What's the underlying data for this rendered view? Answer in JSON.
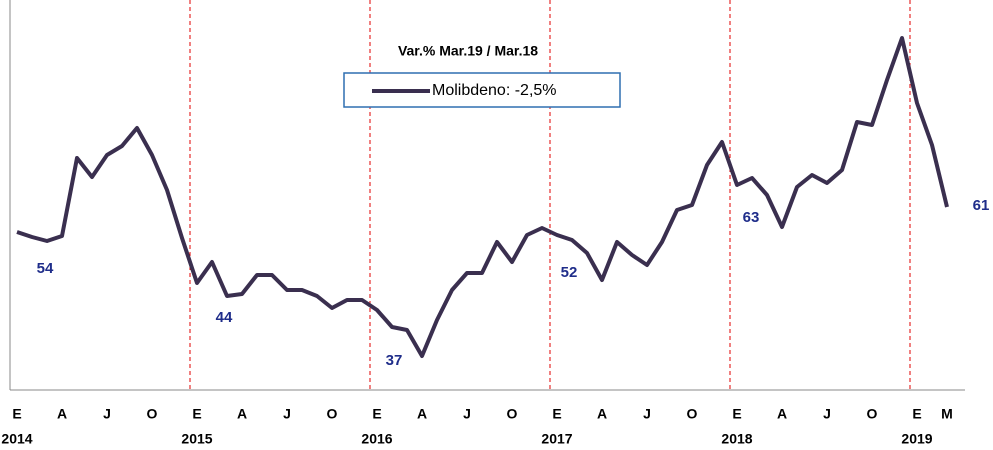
{
  "chart_data": {
    "type": "line",
    "legend_title": "Var.% Mar.19 / Mar.18",
    "categories": [
      "E",
      null,
      null,
      "A",
      null,
      null,
      "J",
      null,
      null,
      "O",
      null,
      null,
      "E",
      null,
      null,
      "A",
      null,
      null,
      "J",
      null,
      null,
      "O",
      null,
      null,
      "E",
      null,
      null,
      "A",
      null,
      null,
      "J",
      null,
      null,
      "O",
      null,
      null,
      "E",
      null,
      null,
      "A",
      null,
      null,
      "J",
      null,
      null,
      "O",
      null,
      null,
      "E",
      null,
      null,
      "A",
      null,
      null,
      "J",
      null,
      null,
      "O",
      null,
      null,
      "E",
      null,
      "M"
    ],
    "years": [
      "2014",
      null,
      null,
      null,
      null,
      null,
      null,
      null,
      null,
      null,
      null,
      null,
      "2015",
      null,
      null,
      null,
      null,
      null,
      null,
      null,
      null,
      null,
      null,
      null,
      "2016",
      null,
      null,
      null,
      null,
      null,
      null,
      null,
      null,
      null,
      null,
      null,
      "2017",
      null,
      null,
      null,
      null,
      null,
      null,
      null,
      null,
      null,
      null,
      null,
      "2018",
      null,
      null,
      null,
      null,
      null,
      null,
      null,
      null,
      null,
      null,
      null,
      "2019",
      null,
      null
    ],
    "series": [
      {
        "name": "Molibdeno: -2,5%",
        "color": "#3a2f4f",
        "values": [
          56,
          55,
          54.2,
          55.2,
          70.8,
          67,
          71.4,
          73.2,
          76.8,
          71.4,
          64.4,
          54.8,
          45.8,
          50,
          43.2,
          43.6,
          47.4,
          47.4,
          44.4,
          44.4,
          43.2,
          40.8,
          42.4,
          42.4,
          40.4,
          37,
          36.4,
          31.2,
          38.4,
          44.4,
          47.8,
          47.8,
          54,
          50,
          55.4,
          56.8,
          55.4,
          54.4,
          51.8,
          46.4,
          54,
          51.4,
          49.4,
          54,
          60.4,
          61.4,
          69.4,
          74,
          65.4,
          66.8,
          63.4,
          57,
          65,
          67.4,
          65.8,
          68.4,
          78,
          77.4,
          86.4,
          94.8,
          81.8,
          73.4,
          61
        ]
      }
    ],
    "annotations": [
      "54",
      "44",
      "37",
      "52",
      "63",
      "61"
    ],
    "ylim": [
      24.4,
      102.4
    ]
  }
}
